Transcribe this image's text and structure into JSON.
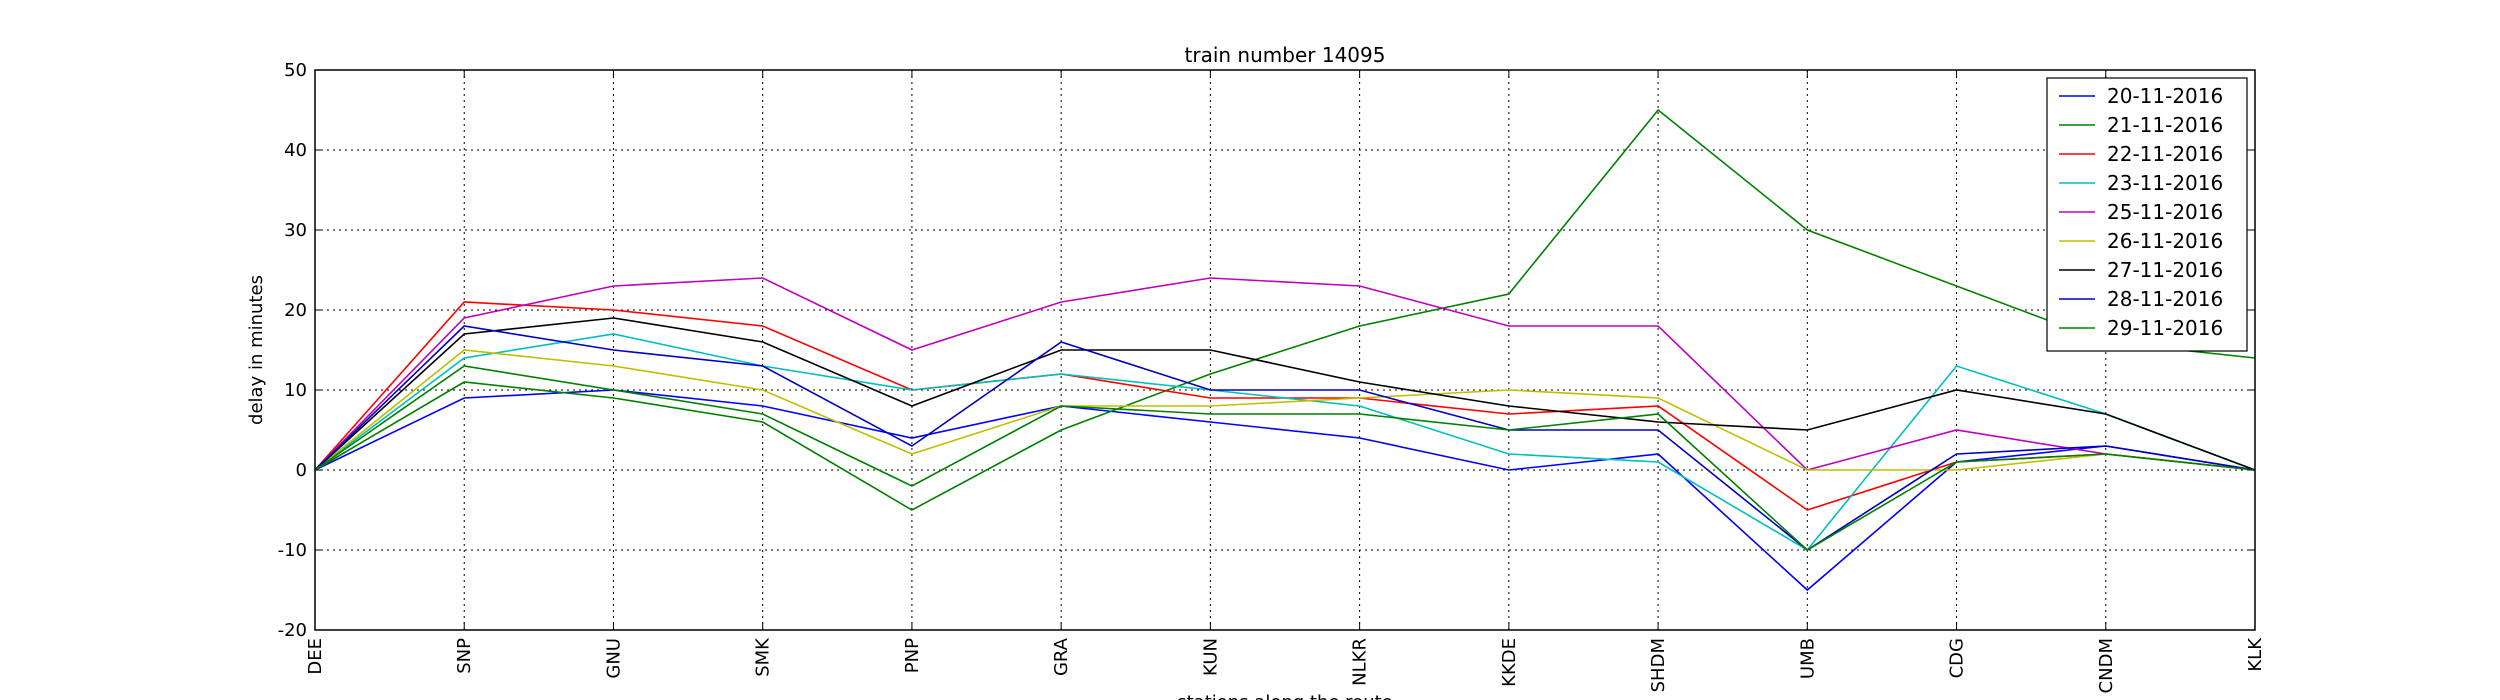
{
  "chart_data": {
    "type": "line",
    "title": "train number 14095",
    "xlabel": "stations along the route",
    "ylabel": "delay in minutes",
    "ylim": [
      -20,
      50
    ],
    "yticks": [
      -20,
      -10,
      0,
      10,
      20,
      30,
      40,
      50
    ],
    "grid": true,
    "legend_position": "top-right",
    "categories": [
      "DEE",
      "SNP",
      "GNU",
      "SMK",
      "PNP",
      "GRA",
      "KUN",
      "NLKR",
      "KKDE",
      "SHDM",
      "UMB",
      "CDG",
      "CNDM",
      "KLK"
    ],
    "series": [
      {
        "name": "20-11-2016",
        "color": "#0000ff",
        "values": [
          0,
          9,
          10,
          8,
          4,
          8,
          6,
          4,
          0,
          2,
          -15,
          1,
          3,
          0
        ]
      },
      {
        "name": "21-11-2016",
        "color": "#008000",
        "values": [
          0,
          11,
          9,
          6,
          -5,
          5,
          12,
          18,
          22,
          45,
          30,
          23,
          16,
          14
        ]
      },
      {
        "name": "22-11-2016",
        "color": "#ff0000",
        "values": [
          0,
          21,
          20,
          18,
          10,
          12,
          9,
          9,
          7,
          8,
          -5,
          1,
          2,
          0
        ]
      },
      {
        "name": "23-11-2016",
        "color": "#00bfbf",
        "values": [
          0,
          14,
          17,
          13,
          10,
          12,
          10,
          8,
          2,
          1,
          -10,
          13,
          7,
          0
        ]
      },
      {
        "name": "25-11-2016",
        "color": "#bf00bf",
        "values": [
          0,
          19,
          23,
          24,
          15,
          21,
          24,
          23,
          18,
          18,
          0,
          5,
          2,
          0
        ]
      },
      {
        "name": "26-11-2016",
        "color": "#bfbf00",
        "values": [
          0,
          15,
          13,
          10,
          2,
          8,
          8,
          9,
          10,
          9,
          0,
          0,
          2,
          0
        ]
      },
      {
        "name": "27-11-2016",
        "color": "#000000",
        "values": [
          0,
          17,
          19,
          16,
          8,
          15,
          15,
          11,
          8,
          6,
          5,
          10,
          7,
          0
        ]
      },
      {
        "name": "28-11-2016",
        "color": "#0000bf",
        "values": [
          0,
          18,
          15,
          13,
          3,
          16,
          10,
          10,
          5,
          5,
          -10,
          2,
          3,
          0
        ]
      },
      {
        "name": "29-11-2016",
        "color": "#008000",
        "values": [
          0,
          13,
          10,
          7,
          -2,
          8,
          7,
          7,
          5,
          7,
          -10,
          1,
          2,
          0
        ]
      }
    ]
  }
}
